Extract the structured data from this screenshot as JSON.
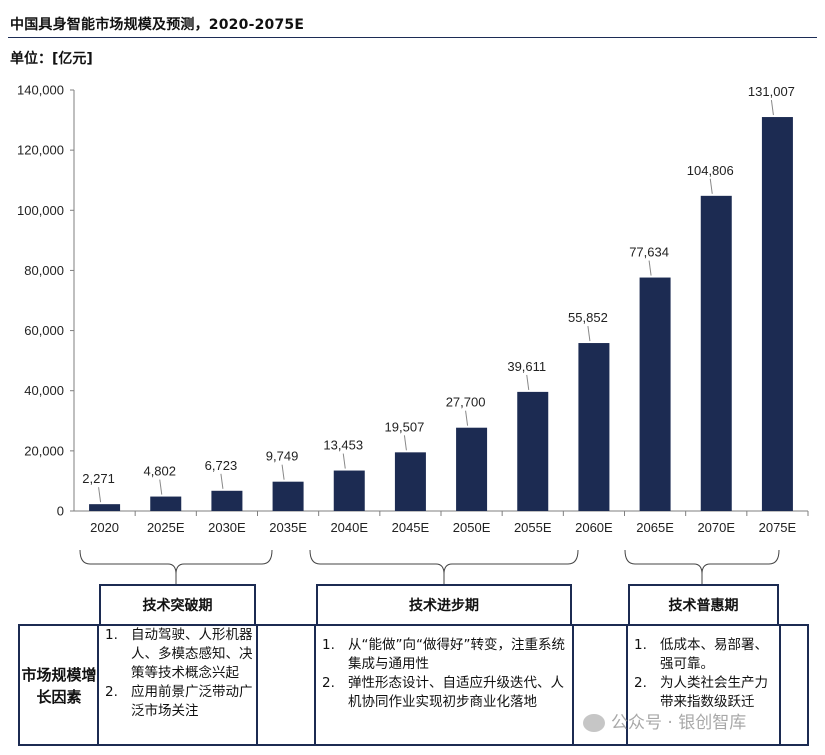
{
  "title": "中国具身智能市场规模及预测，2020-2075E",
  "unit": "单位：[亿元]",
  "colors": {
    "bar": "#1c2b52",
    "axis": "#7f7f7f",
    "box_border": "#1c2b52"
  },
  "chart_data": {
    "type": "bar",
    "categories": [
      "2020",
      "2025E",
      "2030E",
      "2035E",
      "2040E",
      "2045E",
      "2050E",
      "2055E",
      "2060E",
      "2065E",
      "2070E",
      "2075E"
    ],
    "values": [
      2271,
      4802,
      6723,
      9749,
      13453,
      19507,
      27700,
      39611,
      55852,
      77634,
      104806,
      131007
    ],
    "value_labels": [
      "2,271",
      "4,802",
      "6,723",
      "9,749",
      "13,453",
      "19,507",
      "27,700",
      "39,611",
      "55,852",
      "77,634",
      "104,806",
      "131,007"
    ],
    "yticks": [
      "0",
      "20,000",
      "40,000",
      "60,000",
      "80,000",
      "100,000",
      "120,000",
      "140,000"
    ],
    "ylim": [
      0,
      140000
    ],
    "grid": false
  },
  "phases": [
    {
      "label": "技术突破期",
      "items": [
        "自动驾驶、人形机器人、多模态感知、决策等技术概念兴起",
        "应用前景广泛带动广泛市场关注"
      ]
    },
    {
      "label": "技术进步期",
      "items": [
        "从“能做”向“做得好”转变，注重系统集成与通用性",
        "弹性形态设计、自适应升级迭代、人机协同作业实现初步商业化落地"
      ]
    },
    {
      "label": "技术普惠期",
      "items": [
        "低成本、易部署、强可靠。",
        "为人类社会生产力带来指数级跃迁"
      ]
    }
  ],
  "factor_label": "市场规模增长因素",
  "numbers": [
    "1.",
    "2."
  ],
  "watermark": "公众号 · 银创智库"
}
